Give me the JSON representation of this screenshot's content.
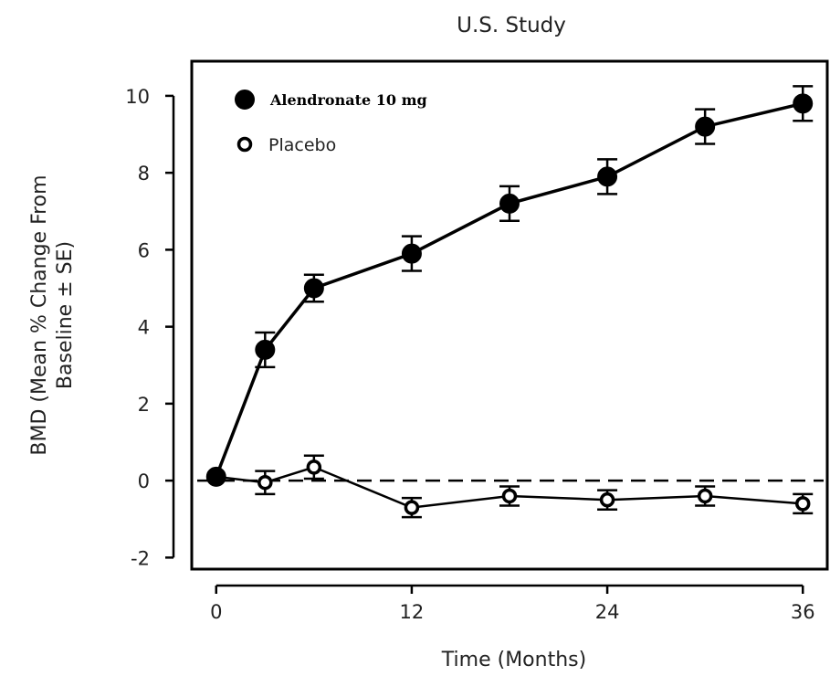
{
  "chart_data": {
    "type": "line",
    "title": "U.S. Study",
    "xlabel": "Time (Months)",
    "ylabel_line1": "BMD (Mean % Change From",
    "ylabel_line2": "Baseline ± SE)",
    "xlim": [
      -1.5,
      37.5
    ],
    "ylim": [
      -2.3,
      10.9
    ],
    "xticks": [
      0,
      12,
      24,
      36
    ],
    "yticks": [
      -2,
      0,
      2,
      4,
      6,
      8,
      10
    ],
    "reference_line": {
      "y": 0,
      "style": "dashed"
    },
    "legend_position": "top-left",
    "series": [
      {
        "name": "Alendronate 10 mg",
        "marker": "filled-circle",
        "color": "#000000",
        "x": [
          0,
          3,
          6,
          12,
          18,
          24,
          30,
          36
        ],
        "y": [
          0.1,
          3.4,
          5.0,
          5.9,
          7.2,
          7.9,
          9.2,
          9.8
        ],
        "se": [
          0.15,
          0.45,
          0.35,
          0.45,
          0.45,
          0.45,
          0.45,
          0.45
        ]
      },
      {
        "name": "Placebo",
        "marker": "open-circle",
        "color": "#000000",
        "x": [
          0,
          3,
          6,
          12,
          18,
          24,
          30,
          36
        ],
        "y": [
          0.1,
          -0.05,
          0.35,
          -0.7,
          -0.4,
          -0.5,
          -0.4,
          -0.6
        ],
        "se": [
          0.15,
          0.3,
          0.3,
          0.25,
          0.25,
          0.25,
          0.25,
          0.25
        ]
      }
    ]
  }
}
